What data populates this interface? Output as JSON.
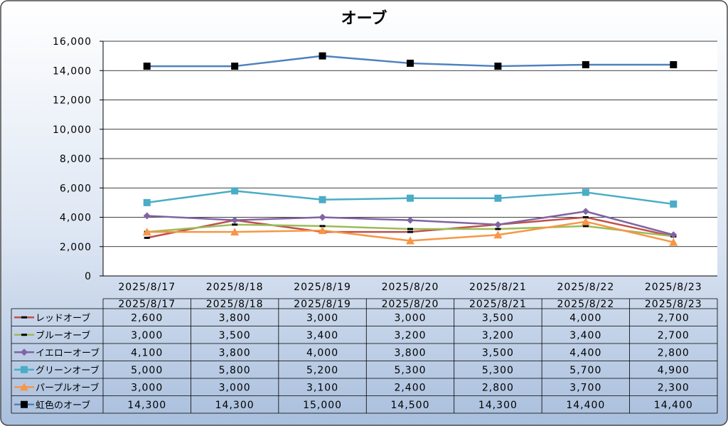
{
  "chart_data": {
    "type": "line",
    "title": "オーブ",
    "categories": [
      "2025/8/17",
      "2025/8/18",
      "2025/8/19",
      "2025/8/20",
      "2025/8/21",
      "2025/8/22",
      "2025/8/23"
    ],
    "ylim": [
      0,
      16000
    ],
    "yticks": [
      "0",
      "2,000",
      "4,000",
      "6,000",
      "8,000",
      "10,000",
      "12,000",
      "14,000",
      "16,000"
    ],
    "grid": true,
    "legend": "data-table",
    "series": [
      {
        "name": "レッドオーブ",
        "values": [
          2600,
          3800,
          3000,
          3000,
          3500,
          4000,
          2700
        ],
        "labels": [
          "2,600",
          "3,800",
          "3,000",
          "3,000",
          "3,500",
          "4,000",
          "2,700"
        ],
        "color": "#c0504d",
        "marker": "dash"
      },
      {
        "name": "ブルーオーブ",
        "values": [
          3000,
          3500,
          3400,
          3200,
          3200,
          3400,
          2700
        ],
        "labels": [
          "3,000",
          "3,500",
          "3,400",
          "3,200",
          "3,200",
          "3,400",
          "2,700"
        ],
        "color": "#9bbb59",
        "marker": "dash"
      },
      {
        "name": "イエローオーブ",
        "values": [
          4100,
          3800,
          4000,
          3800,
          3500,
          4400,
          2800
        ],
        "labels": [
          "4,100",
          "3,800",
          "4,000",
          "3,800",
          "3,500",
          "4,400",
          "2,800"
        ],
        "color": "#8064a2",
        "marker": "diamond"
      },
      {
        "name": "グリーンオーブ",
        "values": [
          5000,
          5800,
          5200,
          5300,
          5300,
          5700,
          4900
        ],
        "labels": [
          "5,000",
          "5,800",
          "5,200",
          "5,300",
          "5,300",
          "5,700",
          "4,900"
        ],
        "color": "#4bacc6",
        "marker": "square"
      },
      {
        "name": "パープルオーブ",
        "values": [
          3000,
          3000,
          3100,
          2400,
          2800,
          3700,
          2300
        ],
        "labels": [
          "3,000",
          "3,000",
          "3,100",
          "2,400",
          "2,800",
          "3,700",
          "2,300"
        ],
        "color": "#f79646",
        "marker": "triangle"
      },
      {
        "name": "虹色のオーブ",
        "values": [
          14300,
          14300,
          15000,
          14500,
          14300,
          14400,
          14400
        ],
        "labels": [
          "14,300",
          "14,300",
          "15,000",
          "14,500",
          "14,300",
          "14,400",
          "14,400"
        ],
        "color": "#4f81bd",
        "marker": "square-black"
      }
    ]
  }
}
